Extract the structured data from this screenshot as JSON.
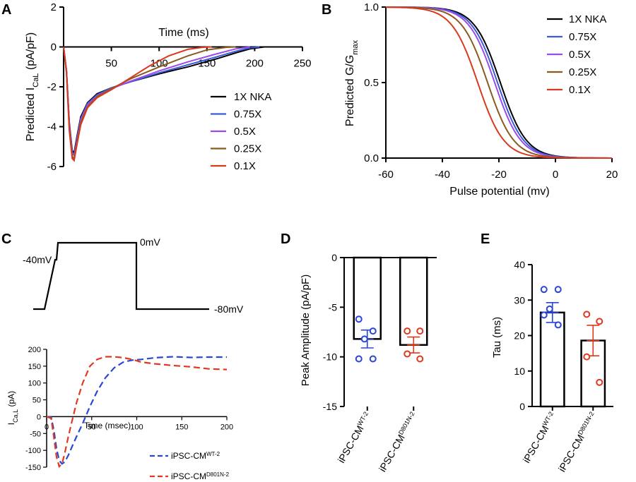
{
  "panels": {
    "a": "A",
    "b": "B",
    "c": "C",
    "d": "D",
    "e": "E"
  },
  "colors": {
    "1X NKA": "#000000",
    "0.75X": "#3a5bd9",
    "0.5X": "#9a4be8",
    "0.25X": "#8a5a1e",
    "0.1X": "#d83a1f",
    "wt": "#2a46d8",
    "d801n": "#e0391e"
  },
  "chart_data": [
    {
      "id": "A",
      "type": "line",
      "xlabel": "Time (ms)",
      "ylabel_main": "Predicted I",
      "ylabel_sub": "CaL",
      "ylabel_rest": " (pA/pF)",
      "xlim": [
        0,
        250
      ],
      "ylim": [
        -6,
        2
      ],
      "xticks": [
        50,
        100,
        150,
        200,
        250
      ],
      "yticks": [
        2,
        0,
        -2,
        -4,
        -6
      ],
      "legend_position": "right",
      "series": [
        {
          "name": "1X NKA",
          "x": [
            0,
            3,
            6,
            9,
            11,
            14,
            18,
            25,
            35,
            50,
            70,
            100,
            130,
            160,
            180,
            195,
            210
          ],
          "y": [
            0,
            -1.2,
            -3.8,
            -5.2,
            -5.3,
            -4.5,
            -3.5,
            -2.8,
            -2.35,
            -2.05,
            -1.75,
            -1.35,
            -1.0,
            -0.6,
            -0.3,
            -0.1,
            0
          ]
        },
        {
          "name": "0.75X",
          "x": [
            0,
            3,
            6,
            9,
            11,
            14,
            18,
            25,
            35,
            50,
            70,
            100,
            130,
            160,
            180,
            195,
            205
          ],
          "y": [
            0,
            -1.2,
            -3.9,
            -5.3,
            -5.4,
            -4.6,
            -3.6,
            -2.85,
            -2.4,
            -2.05,
            -1.75,
            -1.3,
            -0.9,
            -0.5,
            -0.22,
            -0.05,
            0
          ]
        },
        {
          "name": "0.5X",
          "x": [
            0,
            3,
            6,
            9,
            11,
            14,
            18,
            25,
            35,
            50,
            70,
            100,
            130,
            160,
            180,
            195
          ],
          "y": [
            0,
            -1.2,
            -3.9,
            -5.35,
            -5.45,
            -4.7,
            -3.65,
            -2.9,
            -2.45,
            -2.1,
            -1.72,
            -1.2,
            -0.75,
            -0.35,
            -0.1,
            0
          ]
        },
        {
          "name": "0.25X",
          "x": [
            0,
            3,
            6,
            9,
            11,
            14,
            18,
            25,
            35,
            50,
            70,
            100,
            130,
            150,
            170,
            180
          ],
          "y": [
            0,
            -1.3,
            -4.1,
            -5.5,
            -5.6,
            -4.8,
            -3.8,
            -3.0,
            -2.5,
            -2.1,
            -1.6,
            -1.0,
            -0.45,
            -0.15,
            -0.02,
            0
          ]
        },
        {
          "name": "0.1X",
          "x": [
            0,
            3,
            6,
            9,
            11,
            14,
            18,
            25,
            35,
            50,
            70,
            90,
            110,
            130,
            145,
            155
          ],
          "y": [
            0,
            -1.3,
            -4.2,
            -5.6,
            -5.7,
            -4.9,
            -3.9,
            -3.05,
            -2.55,
            -2.15,
            -1.55,
            -0.95,
            -0.45,
            -0.12,
            -0.02,
            0
          ]
        }
      ]
    },
    {
      "id": "B",
      "type": "line",
      "xlabel": "Pulse potential (mv)",
      "ylabel_main": "Predicted G/G",
      "ylabel_sub": "max",
      "xlim": [
        -60,
        20
      ],
      "ylim": [
        0,
        1
      ],
      "xticks": [
        -60,
        -40,
        -20,
        0,
        20
      ],
      "yticks": [
        1.0,
        0.5,
        0.0
      ],
      "legend_position": "top-right",
      "curve": "boltzmann",
      "series": [
        {
          "name": "1X NKA",
          "v_half": -19.5,
          "slope": 4.6
        },
        {
          "name": "0.75X",
          "v_half": -20.5,
          "slope": 4.6
        },
        {
          "name": "0.5X",
          "v_half": -21.5,
          "slope": 4.6
        },
        {
          "name": "0.25X",
          "v_half": -24,
          "slope": 4.6
        },
        {
          "name": "0.1X",
          "v_half": -27.5,
          "slope": 4.6
        }
      ]
    },
    {
      "id": "C-protocol",
      "type": "line",
      "labels": {
        "hold": "-40mV",
        "peak": "0mV",
        "end": "-80mV"
      }
    },
    {
      "id": "C",
      "type": "line",
      "xlabel": "Time (msec)",
      "ylabel_main": "I",
      "ylabel_sub": "Ca,L",
      "ylabel_rest": " (pA)",
      "xlim": [
        0,
        200
      ],
      "ylim": [
        -150,
        200
      ],
      "xticks": [
        0,
        50,
        100,
        150,
        200
      ],
      "yticks": [
        200,
        150,
        100,
        50,
        0,
        -50,
        -100,
        -150
      ],
      "legend_position": "bottom-right",
      "series": [
        {
          "name": "iPSC-CM",
          "sup": "WT-2",
          "x": [
            0,
            5,
            8,
            11,
            14,
            17,
            20,
            24,
            28,
            33,
            40,
            48,
            56,
            65,
            75,
            85,
            95,
            105,
            120,
            140,
            160,
            180,
            200
          ],
          "y": [
            0,
            -2,
            -40,
            -95,
            -130,
            -140,
            -135,
            -115,
            -90,
            -60,
            -20,
            30,
            75,
            115,
            145,
            162,
            168,
            170,
            175,
            178,
            176,
            177,
            177
          ]
        },
        {
          "name": "iPSC-CM",
          "sup": "D801N-2",
          "x": [
            0,
            5,
            8,
            11,
            14,
            17,
            20,
            24,
            28,
            33,
            40,
            48,
            56,
            65,
            75,
            85,
            95,
            105,
            120,
            140,
            160,
            180,
            200
          ],
          "y": [
            0,
            -5,
            -60,
            -120,
            -148,
            -140,
            -110,
            -60,
            -15,
            40,
            100,
            150,
            170,
            178,
            178,
            175,
            170,
            162,
            157,
            152,
            148,
            142,
            140
          ]
        }
      ]
    },
    {
      "id": "D",
      "type": "bar",
      "ylabel": "Peak Amplitude (pA/pF)",
      "ylim": [
        -15,
        0
      ],
      "yticks": [
        0,
        -5,
        -10,
        -15
      ],
      "categories": [
        {
          "name": "iPSC-CM",
          "sup": "WT-2"
        },
        {
          "name": "iPSC-CM",
          "sup": "D801N-2"
        }
      ],
      "values": [
        -8.2,
        -8.8
      ],
      "errors": [
        0.9,
        0.8
      ],
      "points": [
        [
          -6.2,
          -7.4,
          -8.2,
          -10.2,
          -10.2
        ],
        [
          -7.4,
          -7.4,
          -9.7,
          -10.2
        ]
      ]
    },
    {
      "id": "E",
      "type": "bar",
      "ylabel": "Tau (ms)",
      "ylim": [
        0,
        40
      ],
      "yticks": [
        40,
        30,
        20,
        10,
        0
      ],
      "categories": [
        {
          "name": "iPSC-CM",
          "sup": "WT-2"
        },
        {
          "name": "iPSC-CM",
          "sup": "D801N-2"
        }
      ],
      "values": [
        26.5,
        18.6
      ],
      "errors": [
        2.8,
        4.3
      ],
      "points": [
        [
          33.0,
          33.0,
          27.5,
          25.8,
          23.0
        ],
        [
          26.0,
          24.0,
          14.0,
          6.8
        ]
      ]
    }
  ]
}
